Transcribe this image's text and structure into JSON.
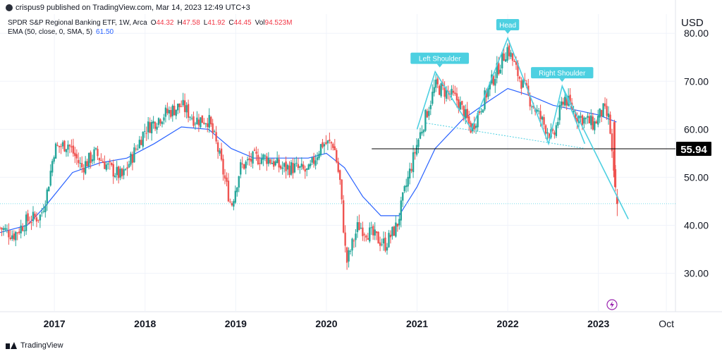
{
  "header": {
    "published": "crispus9 published on TradingView.com, Mar 14, 2023 12:49 UTC+3"
  },
  "legend": {
    "symbol": "SPDR S&P Regional Banking ETF, 1W, Arca",
    "open_label": "O",
    "open": "44.32",
    "high_label": "H",
    "high": "47.58",
    "low_label": "L",
    "low": "41.92",
    "close_label": "C",
    "close": "44.45",
    "vol_label": "Vol",
    "vol": "94.523M",
    "ema_label": "EMA (50, close, 0, SMA, 5)",
    "ema_value": "61.50"
  },
  "footer": {
    "brand": "TradingView"
  },
  "colors": {
    "up": "#26a69a",
    "down": "#ef5350",
    "ema": "#2962ff",
    "pattern": "#4dd0e1",
    "support": "#000000",
    "grid": "#f0f3fa"
  },
  "chart_data": {
    "type": "candlestick",
    "currency": "USD",
    "y_ticks": [
      "30.00",
      "40.00",
      "50.00",
      "60.00",
      "70.00",
      "80.00"
    ],
    "x_ticks": [
      "2017",
      "2018",
      "2019",
      "2020",
      "2021",
      "2022",
      "2023",
      "Oct"
    ],
    "ylim": [
      22,
      84
    ],
    "xlim": [
      2016.4,
      2023.85
    ],
    "support_level": 55.94,
    "support_label": "55.94",
    "dotted_level": 44.5,
    "annotations": [
      {
        "label": "Left Shoulder",
        "x": 2021.25,
        "y": 72
      },
      {
        "label": "Head",
        "x": 2022.0,
        "y": 79
      },
      {
        "label": "Right Shoulder",
        "x": 2022.6,
        "y": 69
      }
    ],
    "price_path": [
      [
        2016.4,
        39.5
      ],
      [
        2016.55,
        38
      ],
      [
        2016.7,
        41
      ],
      [
        2016.85,
        42
      ],
      [
        2016.92,
        47
      ],
      [
        2017.0,
        56
      ],
      [
        2017.15,
        57
      ],
      [
        2017.3,
        52
      ],
      [
        2017.45,
        55
      ],
      [
        2017.6,
        52
      ],
      [
        2017.75,
        50
      ],
      [
        2017.85,
        54
      ],
      [
        2018.0,
        60
      ],
      [
        2018.2,
        63
      ],
      [
        2018.4,
        65
      ],
      [
        2018.55,
        62
      ],
      [
        2018.7,
        62
      ],
      [
        2018.8,
        56
      ],
      [
        2018.95,
        44
      ],
      [
        2019.05,
        52
      ],
      [
        2019.2,
        54
      ],
      [
        2019.35,
        54
      ],
      [
        2019.5,
        52
      ],
      [
        2019.65,
        52
      ],
      [
        2019.8,
        51
      ],
      [
        2019.95,
        57
      ],
      [
        2020.08,
        57
      ],
      [
        2020.15,
        49
      ],
      [
        2020.22,
        32
      ],
      [
        2020.35,
        40
      ],
      [
        2020.5,
        38
      ],
      [
        2020.65,
        36
      ],
      [
        2020.78,
        40
      ],
      [
        2020.85,
        46
      ],
      [
        2021.0,
        57
      ],
      [
        2021.2,
        69
      ],
      [
        2021.3,
        68
      ],
      [
        2021.45,
        66
      ],
      [
        2021.6,
        60
      ],
      [
        2021.8,
        69
      ],
      [
        2021.95,
        75
      ],
      [
        2022.0,
        77
      ],
      [
        2022.1,
        72
      ],
      [
        2022.25,
        66
      ],
      [
        2022.4,
        61
      ],
      [
        2022.5,
        58
      ],
      [
        2022.62,
        67
      ],
      [
        2022.75,
        63
      ],
      [
        2022.85,
        62
      ],
      [
        2022.95,
        61
      ],
      [
        2023.05,
        64
      ],
      [
        2023.12,
        62
      ],
      [
        2023.17,
        50
      ],
      [
        2023.2,
        44.45
      ]
    ],
    "ema_path": [
      [
        2016.4,
        38.5
      ],
      [
        2016.7,
        40
      ],
      [
        2016.9,
        44
      ],
      [
        2017.2,
        51
      ],
      [
        2017.5,
        53
      ],
      [
        2017.8,
        54
      ],
      [
        2018.1,
        57
      ],
      [
        2018.4,
        60.5
      ],
      [
        2018.7,
        60
      ],
      [
        2018.95,
        56
      ],
      [
        2019.2,
        54
      ],
      [
        2019.5,
        54
      ],
      [
        2019.8,
        54
      ],
      [
        2020.0,
        55
      ],
      [
        2020.2,
        52
      ],
      [
        2020.4,
        46
      ],
      [
        2020.6,
        42
      ],
      [
        2020.8,
        42
      ],
      [
        2021.0,
        48
      ],
      [
        2021.2,
        56
      ],
      [
        2021.5,
        62
      ],
      [
        2021.8,
        66
      ],
      [
        2022.0,
        68.5
      ],
      [
        2022.25,
        67
      ],
      [
        2022.5,
        65
      ],
      [
        2022.75,
        64
      ],
      [
        2023.0,
        63
      ],
      [
        2023.2,
        61.5
      ]
    ]
  }
}
